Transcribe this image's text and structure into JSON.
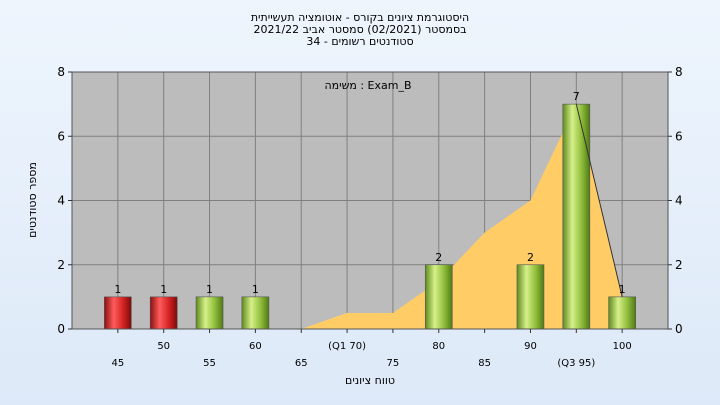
{
  "title_lines": [
    "היסטוגרמת ציונים בקורס - אוטומציה תעשייתית",
    "בסמסטר  (02/2021)  סמסטר אביב 2021/22",
    "סטודנטים רשומים - 34"
  ],
  "chart_data": {
    "type": "bar",
    "annotation": "משימה : Exam_B",
    "xlabel": "טווח ציונים",
    "ylabel": "מספר סטודנטים",
    "ylim": [
      0,
      8
    ],
    "yticks": [
      0,
      2,
      4,
      6,
      8
    ],
    "grid": true,
    "categories": [
      "45",
      "50",
      "55",
      "60",
      "65",
      "(Q1 70)",
      "75",
      "80",
      "85",
      "90",
      "(Q3 95)",
      "100"
    ],
    "values": [
      1,
      1,
      1,
      1,
      0,
      0,
      0,
      2,
      0,
      2,
      7,
      1
    ],
    "bar_colors": [
      "red",
      "red",
      "green",
      "green",
      "",
      "",
      "",
      "green",
      "",
      "green",
      "green",
      "green"
    ],
    "area_y": [
      0,
      0,
      0,
      0,
      0,
      0.5,
      0.5,
      1.5,
      3,
      4,
      7,
      1
    ],
    "colors": {
      "plot_bg": "#bcbcbc",
      "red_bar": "#d42222",
      "green_bar": "#8fbd3a",
      "area": "#ffcc66",
      "area_grey": "#d4d4d4"
    }
  }
}
